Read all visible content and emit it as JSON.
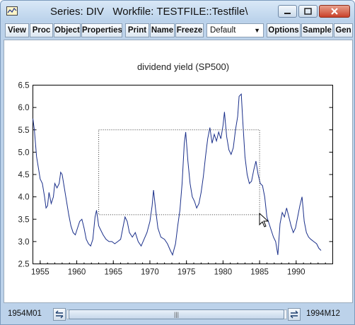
{
  "window": {
    "title": "Series: DIV   Workfile: TESTFILE::Testfile\\",
    "buttons": [
      "minimize",
      "maximize",
      "close"
    ]
  },
  "toolbar": {
    "view": "View",
    "proc": "Proc",
    "object": "Object",
    "properties": "Properties",
    "print": "Print",
    "name": "Name",
    "freeze": "Freeze",
    "view_select": "Default",
    "options": "Options",
    "sample": "Sample",
    "gen": "Gen"
  },
  "status": {
    "start": "1954M01",
    "end": "1994M12"
  },
  "chart_data": {
    "type": "line",
    "title": "dividend yield (SP500)",
    "xlabel": "",
    "ylabel": "",
    "xlim": [
      1954.0,
      1995.0
    ],
    "ylim": [
      2.5,
      6.5
    ],
    "x_ticks": [
      1955,
      1960,
      1965,
      1970,
      1975,
      1980,
      1985,
      1990
    ],
    "y_ticks": [
      2.5,
      3.0,
      3.5,
      4.0,
      4.5,
      5.0,
      5.5,
      6.0,
      6.5
    ],
    "y_tick_labels": [
      "2.5",
      "3.0",
      "3.5",
      "4.0",
      "4.5",
      "5.0",
      "5.5",
      "6.0",
      "6.5"
    ],
    "x_tick_labels": [
      "1955",
      "1960",
      "1965",
      "1970",
      "1975",
      "1980",
      "1985",
      "1990"
    ],
    "series": [
      {
        "color": "#1a2f8a",
        "points": [
          [
            1954.0,
            5.75
          ],
          [
            1954.2,
            5.5
          ],
          [
            1954.5,
            4.9
          ],
          [
            1954.8,
            4.6
          ],
          [
            1955.0,
            4.4
          ],
          [
            1955.3,
            4.3
          ],
          [
            1955.6,
            4.0
          ],
          [
            1955.8,
            3.75
          ],
          [
            1956.0,
            3.8
          ],
          [
            1956.2,
            4.1
          ],
          [
            1956.5,
            3.85
          ],
          [
            1956.8,
            4.0
          ],
          [
            1957.0,
            4.3
          ],
          [
            1957.3,
            4.2
          ],
          [
            1957.6,
            4.3
          ],
          [
            1957.8,
            4.55
          ],
          [
            1958.0,
            4.5
          ],
          [
            1958.3,
            4.2
          ],
          [
            1958.6,
            3.9
          ],
          [
            1958.9,
            3.6
          ],
          [
            1959.2,
            3.35
          ],
          [
            1959.5,
            3.2
          ],
          [
            1959.8,
            3.15
          ],
          [
            1960.1,
            3.3
          ],
          [
            1960.4,
            3.45
          ],
          [
            1960.7,
            3.5
          ],
          [
            1961.0,
            3.3
          ],
          [
            1961.3,
            3.05
          ],
          [
            1961.6,
            2.95
          ],
          [
            1961.9,
            2.9
          ],
          [
            1962.2,
            3.05
          ],
          [
            1962.5,
            3.55
          ],
          [
            1962.7,
            3.7
          ],
          [
            1963.0,
            3.35
          ],
          [
            1963.3,
            3.25
          ],
          [
            1963.6,
            3.15
          ],
          [
            1964.0,
            3.05
          ],
          [
            1964.4,
            3.0
          ],
          [
            1964.8,
            3.0
          ],
          [
            1965.2,
            2.95
          ],
          [
            1965.6,
            3.0
          ],
          [
            1966.0,
            3.05
          ],
          [
            1966.3,
            3.3
          ],
          [
            1966.6,
            3.55
          ],
          [
            1966.9,
            3.45
          ],
          [
            1967.2,
            3.2
          ],
          [
            1967.6,
            3.1
          ],
          [
            1968.0,
            3.2
          ],
          [
            1968.4,
            3.0
          ],
          [
            1968.8,
            2.9
          ],
          [
            1969.2,
            3.05
          ],
          [
            1969.6,
            3.2
          ],
          [
            1970.0,
            3.45
          ],
          [
            1970.3,
            3.8
          ],
          [
            1970.5,
            4.15
          ],
          [
            1970.8,
            3.7
          ],
          [
            1971.1,
            3.3
          ],
          [
            1971.5,
            3.1
          ],
          [
            1972.0,
            3.05
          ],
          [
            1972.4,
            2.95
          ],
          [
            1972.8,
            2.8
          ],
          [
            1973.1,
            2.7
          ],
          [
            1973.5,
            2.95
          ],
          [
            1973.8,
            3.35
          ],
          [
            1974.1,
            3.7
          ],
          [
            1974.4,
            4.3
          ],
          [
            1974.7,
            5.2
          ],
          [
            1974.9,
            5.45
          ],
          [
            1975.2,
            4.8
          ],
          [
            1975.5,
            4.3
          ],
          [
            1975.8,
            4.0
          ],
          [
            1976.1,
            3.9
          ],
          [
            1976.4,
            3.75
          ],
          [
            1976.7,
            3.85
          ],
          [
            1977.0,
            4.1
          ],
          [
            1977.3,
            4.45
          ],
          [
            1977.6,
            4.9
          ],
          [
            1977.9,
            5.3
          ],
          [
            1978.2,
            5.55
          ],
          [
            1978.5,
            5.2
          ],
          [
            1978.8,
            5.4
          ],
          [
            1979.1,
            5.25
          ],
          [
            1979.4,
            5.45
          ],
          [
            1979.7,
            5.3
          ],
          [
            1980.0,
            5.6
          ],
          [
            1980.2,
            5.9
          ],
          [
            1980.5,
            5.35
          ],
          [
            1980.8,
            5.05
          ],
          [
            1981.1,
            4.95
          ],
          [
            1981.4,
            5.1
          ],
          [
            1981.7,
            5.5
          ],
          [
            1982.0,
            5.8
          ],
          [
            1982.2,
            6.25
          ],
          [
            1982.5,
            6.3
          ],
          [
            1982.7,
            5.7
          ],
          [
            1983.0,
            4.9
          ],
          [
            1983.3,
            4.5
          ],
          [
            1983.6,
            4.3
          ],
          [
            1983.9,
            4.35
          ],
          [
            1984.2,
            4.6
          ],
          [
            1984.5,
            4.8
          ],
          [
            1984.8,
            4.5
          ],
          [
            1985.1,
            4.3
          ],
          [
            1985.4,
            4.25
          ],
          [
            1985.7,
            4.0
          ],
          [
            1986.0,
            3.55
          ],
          [
            1986.3,
            3.4
          ],
          [
            1986.6,
            3.25
          ],
          [
            1986.9,
            3.1
          ],
          [
            1987.2,
            3.0
          ],
          [
            1987.5,
            2.7
          ],
          [
            1987.8,
            3.4
          ],
          [
            1988.1,
            3.65
          ],
          [
            1988.4,
            3.55
          ],
          [
            1988.7,
            3.75
          ],
          [
            1989.0,
            3.55
          ],
          [
            1989.3,
            3.35
          ],
          [
            1989.6,
            3.2
          ],
          [
            1989.9,
            3.3
          ],
          [
            1990.2,
            3.55
          ],
          [
            1990.5,
            3.8
          ],
          [
            1990.8,
            4.0
          ],
          [
            1991.1,
            3.45
          ],
          [
            1991.4,
            3.2
          ],
          [
            1991.7,
            3.1
          ],
          [
            1992.0,
            3.05
          ],
          [
            1992.4,
            3.0
          ],
          [
            1992.8,
            2.95
          ],
          [
            1993.1,
            2.85
          ],
          [
            1993.4,
            2.8
          ]
        ]
      }
    ],
    "zoom_selection": {
      "x0": 1963.0,
      "x1": 1985.0,
      "y0": 3.6,
      "y1": 5.5
    }
  }
}
